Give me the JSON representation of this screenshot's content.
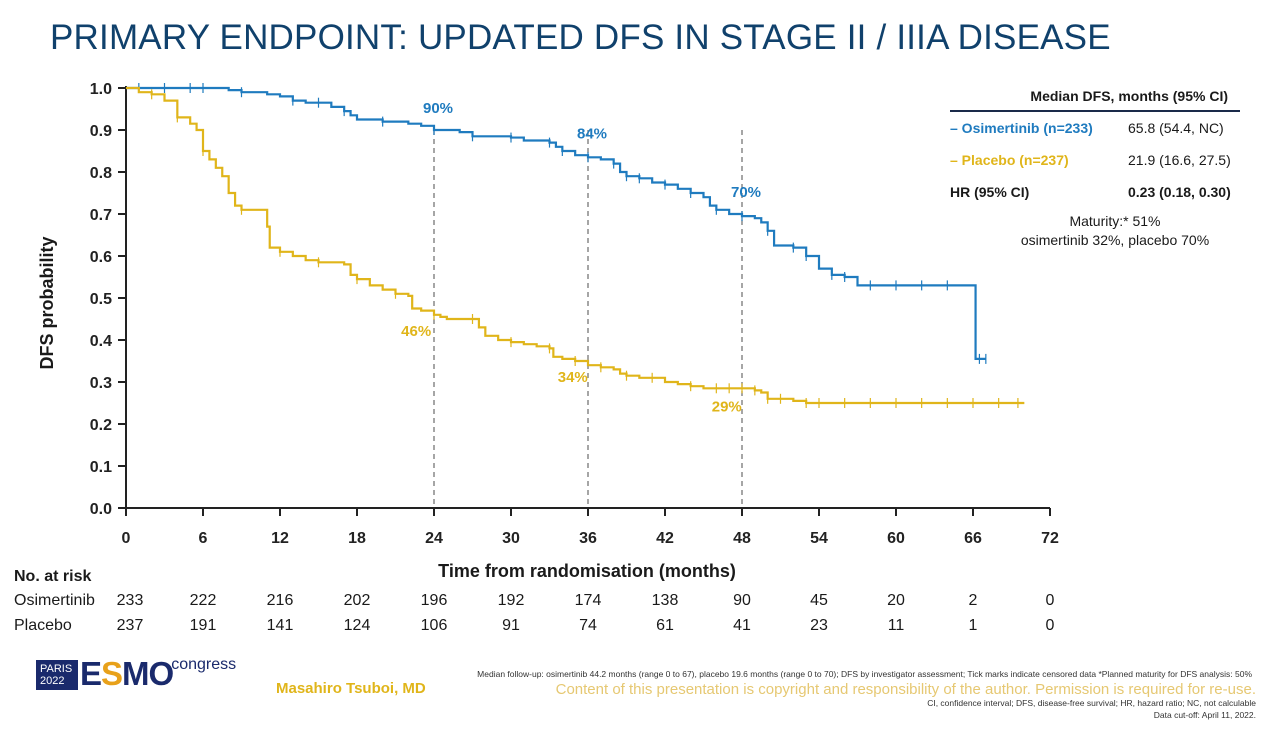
{
  "title": "PRIMARY ENDPOINT: UPDATED DFS IN STAGE II / IIIA DISEASE",
  "colors": {
    "osimertinib": "#1f7bbf",
    "placebo": "#e0b51a",
    "title": "#10416c"
  },
  "chart_data": {
    "type": "line",
    "title": "PRIMARY ENDPOINT: UPDATED DFS IN STAGE II / IIIA DISEASE",
    "xlabel": "Time from randomisation (months)",
    "ylabel": "DFS probability",
    "xlim": [
      0,
      72
    ],
    "ylim": [
      0,
      1
    ],
    "xticks": [
      0,
      6,
      12,
      18,
      24,
      30,
      36,
      42,
      48,
      54,
      60,
      66,
      72
    ],
    "yticks": [
      "0.0",
      "0.1",
      "0.2",
      "0.3",
      "0.4",
      "0.5",
      "0.6",
      "0.7",
      "0.8",
      "0.9",
      "1.0"
    ],
    "reference_lines_x": [
      24,
      36,
      48
    ],
    "annotations": [
      {
        "series": "Osimertinib",
        "x": 24,
        "y": 0.94,
        "text": "90%"
      },
      {
        "series": "Osimertinib",
        "x": 36,
        "y": 0.88,
        "text": "84%"
      },
      {
        "series": "Osimertinib",
        "x": 48,
        "y": 0.74,
        "text": "70%"
      },
      {
        "series": "Placebo",
        "x": 22.3,
        "y": 0.41,
        "text": "46%"
      },
      {
        "series": "Placebo",
        "x": 34.5,
        "y": 0.3,
        "text": "34%"
      },
      {
        "series": "Placebo",
        "x": 46.5,
        "y": 0.23,
        "text": "29%"
      }
    ],
    "series": [
      {
        "name": "Osimertinib",
        "color": "#1f7bbf",
        "steps": [
          [
            0,
            1.0
          ],
          [
            8,
            0.995
          ],
          [
            9,
            0.99
          ],
          [
            11,
            0.985
          ],
          [
            12,
            0.98
          ],
          [
            13,
            0.97
          ],
          [
            14,
            0.965
          ],
          [
            16,
            0.955
          ],
          [
            17,
            0.945
          ],
          [
            17.5,
            0.935
          ],
          [
            18,
            0.925
          ],
          [
            20,
            0.92
          ],
          [
            22,
            0.915
          ],
          [
            23,
            0.91
          ],
          [
            24,
            0.9
          ],
          [
            26,
            0.895
          ],
          [
            27,
            0.885
          ],
          [
            30,
            0.882
          ],
          [
            31,
            0.875
          ],
          [
            33,
            0.87
          ],
          [
            33.5,
            0.86
          ],
          [
            34,
            0.85
          ],
          [
            35,
            0.84
          ],
          [
            36,
            0.835
          ],
          [
            37,
            0.83
          ],
          [
            38,
            0.82
          ],
          [
            38.5,
            0.8
          ],
          [
            39,
            0.79
          ],
          [
            40,
            0.785
          ],
          [
            41,
            0.775
          ],
          [
            42,
            0.77
          ],
          [
            43,
            0.76
          ],
          [
            44,
            0.75
          ],
          [
            45,
            0.74
          ],
          [
            45.5,
            0.72
          ],
          [
            46,
            0.71
          ],
          [
            47,
            0.7
          ],
          [
            48,
            0.695
          ],
          [
            49,
            0.69
          ],
          [
            49.5,
            0.68
          ],
          [
            50,
            0.66
          ],
          [
            50.5,
            0.625
          ],
          [
            52,
            0.62
          ],
          [
            53,
            0.6
          ],
          [
            54,
            0.57
          ],
          [
            55,
            0.555
          ],
          [
            56,
            0.55
          ],
          [
            57,
            0.53
          ],
          [
            66,
            0.53
          ],
          [
            66.2,
            0.355
          ],
          [
            67,
            0.355
          ]
        ],
        "censor_x": [
          1,
          3,
          5,
          6,
          9,
          13,
          15,
          17,
          20,
          24,
          27,
          30,
          33,
          34,
          36,
          38,
          39,
          40,
          42,
          44,
          46,
          48,
          50,
          52,
          53,
          55,
          56,
          58,
          60,
          62,
          64,
          66.5,
          67
        ]
      },
      {
        "name": "Placebo",
        "color": "#e0b51a",
        "steps": [
          [
            0,
            1.0
          ],
          [
            1,
            0.99
          ],
          [
            2,
            0.985
          ],
          [
            3,
            0.97
          ],
          [
            4,
            0.93
          ],
          [
            5,
            0.915
          ],
          [
            5.5,
            0.9
          ],
          [
            6,
            0.85
          ],
          [
            6.5,
            0.83
          ],
          [
            7,
            0.81
          ],
          [
            7.5,
            0.79
          ],
          [
            8,
            0.75
          ],
          [
            8.5,
            0.72
          ],
          [
            9,
            0.71
          ],
          [
            11,
            0.67
          ],
          [
            11.2,
            0.62
          ],
          [
            12,
            0.61
          ],
          [
            13,
            0.6
          ],
          [
            14,
            0.59
          ],
          [
            15,
            0.585
          ],
          [
            17,
            0.58
          ],
          [
            17.5,
            0.555
          ],
          [
            18,
            0.545
          ],
          [
            19,
            0.53
          ],
          [
            20,
            0.52
          ],
          [
            21,
            0.51
          ],
          [
            22,
            0.505
          ],
          [
            22.3,
            0.475
          ],
          [
            23,
            0.47
          ],
          [
            24,
            0.46
          ],
          [
            24.5,
            0.455
          ],
          [
            25,
            0.45
          ],
          [
            27,
            0.45
          ],
          [
            27.5,
            0.43
          ],
          [
            28,
            0.41
          ],
          [
            29,
            0.4
          ],
          [
            30,
            0.395
          ],
          [
            31,
            0.39
          ],
          [
            32,
            0.385
          ],
          [
            33,
            0.38
          ],
          [
            33.3,
            0.36
          ],
          [
            34,
            0.355
          ],
          [
            35,
            0.35
          ],
          [
            36,
            0.34
          ],
          [
            37,
            0.335
          ],
          [
            38,
            0.33
          ],
          [
            38.5,
            0.32
          ],
          [
            39,
            0.315
          ],
          [
            40,
            0.31
          ],
          [
            42,
            0.3
          ],
          [
            43,
            0.295
          ],
          [
            44,
            0.29
          ],
          [
            45,
            0.285
          ],
          [
            49,
            0.28
          ],
          [
            49.5,
            0.275
          ],
          [
            50,
            0.26
          ],
          [
            52,
            0.255
          ],
          [
            53,
            0.25
          ],
          [
            70,
            0.25
          ]
        ],
        "censor_x": [
          2,
          4,
          6,
          9,
          12,
          15,
          18,
          21,
          24,
          27,
          30,
          33,
          35,
          37,
          39,
          41,
          44,
          46,
          47,
          48,
          49,
          50,
          51,
          53,
          54,
          56,
          58,
          60,
          62,
          64,
          66,
          68,
          69.5
        ]
      }
    ]
  },
  "legend": {
    "header": "Median DFS, months (95% CI)",
    "osimertinib_label": "– Osimertinib (n=233)",
    "osimertinib_value": "65.8 (54.4, NC)",
    "placebo_label": "– Placebo (n=237)",
    "placebo_value": "21.9 (16.6, 27.5)",
    "hr_label": "HR (95% CI)",
    "hr_value": "0.23 (0.18, 0.30)",
    "maturity_line1": "Maturity:* 51%",
    "maturity_line2": "osimertinib 32%, placebo 70%"
  },
  "risk_table": {
    "title": "No. at risk",
    "rows": [
      {
        "label": "Osimertinib",
        "values": [
          "233",
          "222",
          "216",
          "202",
          "196",
          "192",
          "174",
          "138",
          "90",
          "45",
          "20",
          "2",
          "0"
        ]
      },
      {
        "label": "Placebo",
        "values": [
          "237",
          "191",
          "141",
          "124",
          "106",
          "91",
          "74",
          "61",
          "41",
          "23",
          "11",
          "1",
          "0"
        ]
      }
    ]
  },
  "logo": {
    "city": "PARIS",
    "year": "2022",
    "brand": "ESMO",
    "word": "congress"
  },
  "presenter": "Masahiro Tsuboi, MD",
  "footnotes": {
    "line1": "Median follow-up: osimertinib 44.2 months (range 0 to 67), placebo 19.6 months (range 0 to 70); DFS by investigator assessment; Tick marks indicate censored data *Planned maturity for DFS analysis: 50%",
    "copyright": "Content of this presentation is copyright and responsibility of the author. Permission is required for re-use.",
    "line2": "CI, confidence interval; DFS, disease-free survival; HR, hazard ratio; NC, not calculable",
    "line3": "Data cut-off: April 11, 2022."
  }
}
